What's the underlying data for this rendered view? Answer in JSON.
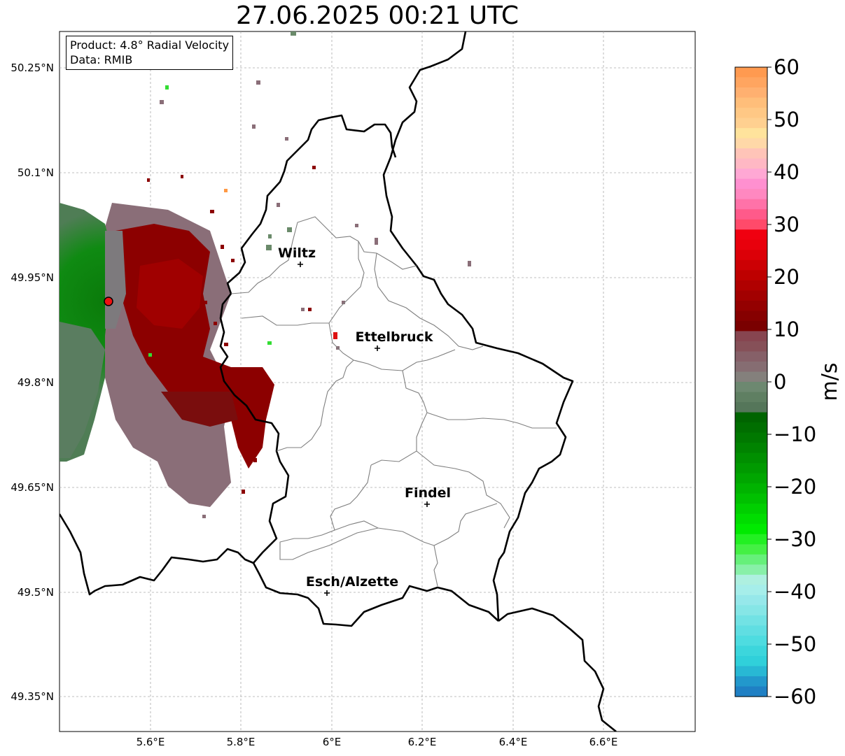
{
  "title": "27.06.2025 00:21 UTC",
  "info": {
    "product": "Product: 4.8° Radial Velocity",
    "data": "Data: RMIB"
  },
  "axes": {
    "lat_ticks": [
      "50.25°N",
      "50.1°N",
      "49.95°N",
      "49.8°N",
      "49.65°N",
      "49.5°N",
      "49.35°N"
    ],
    "lon_ticks": [
      "5.6°E",
      "5.8°E",
      "6°E",
      "6.2°E",
      "6.4°E",
      "6.6°E"
    ]
  },
  "cities": [
    {
      "name": "Wiltz"
    },
    {
      "name": "Ettelbruck"
    },
    {
      "name": "Findel"
    },
    {
      "name": "Esch/Alzette"
    }
  ],
  "colorbar": {
    "label": "m/s",
    "ticks": [
      "60",
      "50",
      "40",
      "30",
      "20",
      "10",
      "0",
      "−10",
      "−20",
      "−30",
      "−40",
      "−50",
      "−60"
    ],
    "range": [
      -60,
      60
    ]
  }
}
